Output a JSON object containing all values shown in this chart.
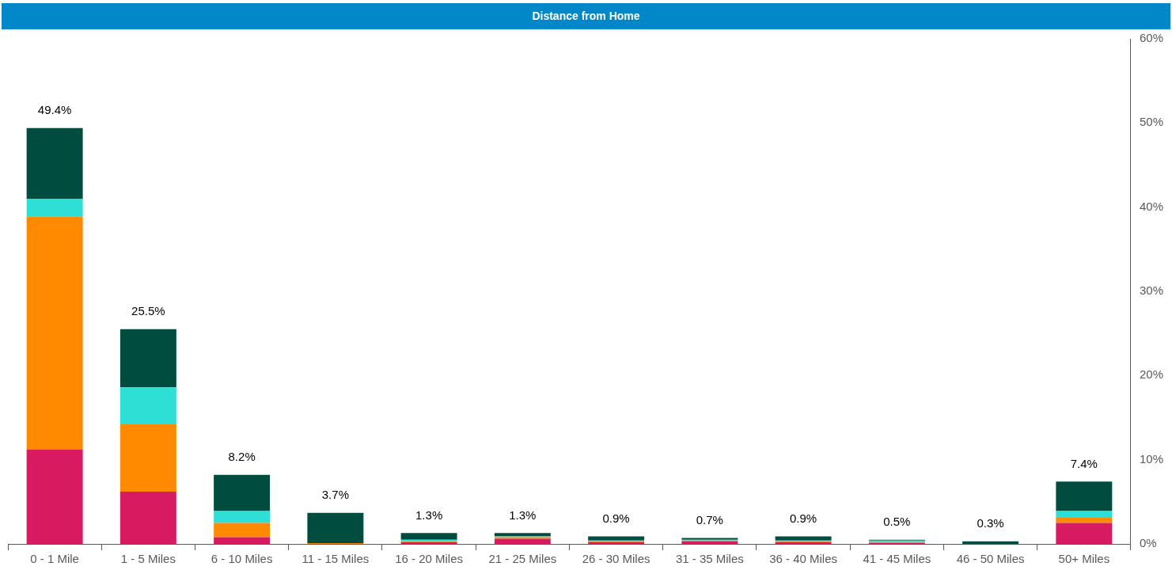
{
  "chart_data": {
    "type": "bar",
    "title": "Distance from Home",
    "stacked": true,
    "categories": [
      "0 - 1 Mile",
      "1 - 5 Miles",
      "6 - 10 Miles",
      "11 - 15 Miles",
      "16 - 20 Miles",
      "21 - 25 Miles",
      "26 - 30 Miles",
      "31 - 35 Miles",
      "36 - 40 Miles",
      "41 - 45 Miles",
      "46 - 50 Miles",
      "50+ Miles"
    ],
    "series": [
      {
        "color": "#d81b60",
        "values": [
          11.2,
          6.2,
          0.8,
          0,
          0.2,
          0.6,
          0.2,
          0.3,
          0.2,
          0.1,
          0,
          2.5
        ]
      },
      {
        "color": "#ff8a00",
        "values": [
          27.7,
          8.0,
          1.7,
          0.1,
          0.1,
          0.2,
          0.1,
          0.1,
          0.1,
          0.1,
          0,
          0.6
        ]
      },
      {
        "color": "#2edfd6",
        "values": [
          2.1,
          4.4,
          1.4,
          0,
          0.2,
          0.1,
          0.1,
          0.1,
          0.1,
          0.2,
          0,
          0.8
        ]
      },
      {
        "color": "#004d40",
        "values": [
          8.4,
          6.9,
          4.3,
          3.6,
          0.8,
          0.4,
          0.5,
          0.2,
          0.5,
          0.1,
          0.3,
          3.5
        ]
      }
    ],
    "totals": [
      "49.4%",
      "25.5%",
      "8.2%",
      "3.7%",
      "1.3%",
      "1.3%",
      "0.9%",
      "0.7%",
      "0.9%",
      "0.5%",
      "0.3%",
      "7.4%"
    ],
    "ylim": [
      0,
      60
    ],
    "yticks": [
      {
        "value": 0,
        "label": "0%"
      },
      {
        "value": 10,
        "label": "10%"
      },
      {
        "value": 20,
        "label": "20%"
      },
      {
        "value": 30,
        "label": "30%"
      },
      {
        "value": 40,
        "label": "40%"
      },
      {
        "value": 50,
        "label": "50%"
      },
      {
        "value": 60,
        "label": "60%"
      }
    ],
    "grid": false,
    "legend": false
  }
}
